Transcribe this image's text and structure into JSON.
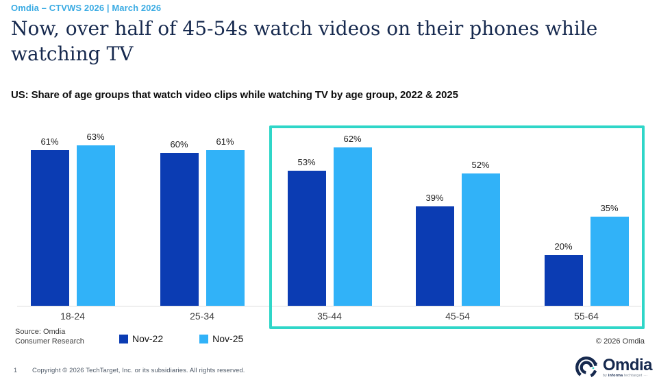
{
  "header": {
    "eyebrow": "Omdia – CTVWS 2026 | March 2026",
    "title": "Now, over half of 45-54s watch videos on their phones while watching TV",
    "subtitle": "US: Share of age groups that watch video clips while watching TV by age group, 2022 & 2025"
  },
  "chart_data": {
    "type": "bar",
    "title": "US: Share of age groups that watch video clips while watching TV by age group, 2022 & 2025",
    "categories": [
      "18-24",
      "25-34",
      "35-44",
      "45-54",
      "55-64"
    ],
    "series": [
      {
        "name": "Nov-22",
        "color": "#0b3cb3",
        "values": [
          61,
          60,
          53,
          39,
          20
        ]
      },
      {
        "name": "Nov-25",
        "color": "#31b2f8",
        "values": [
          63,
          61,
          62,
          52,
          35
        ]
      }
    ],
    "value_suffix": "%",
    "ylim": [
      0,
      70
    ],
    "grid": false,
    "legend_position": "bottom",
    "highlighted_categories": [
      "35-44",
      "45-54",
      "55-64"
    ],
    "highlight_color": "#2fd6c8"
  },
  "footer": {
    "source_line1": "Source: Omdia",
    "source_line2": "Consumer Research",
    "chart_copyright": "© 2026 Omdia",
    "page_number": "1",
    "page_copyright": "Copyright © 2026 TechTarget, Inc. or its subsidiaries. All rights reserved.",
    "logo_text": "Omdia",
    "logo_sub_prefix": "by ",
    "logo_sub_bold": "informa",
    "logo_sub_rest": " techtarget ···"
  }
}
